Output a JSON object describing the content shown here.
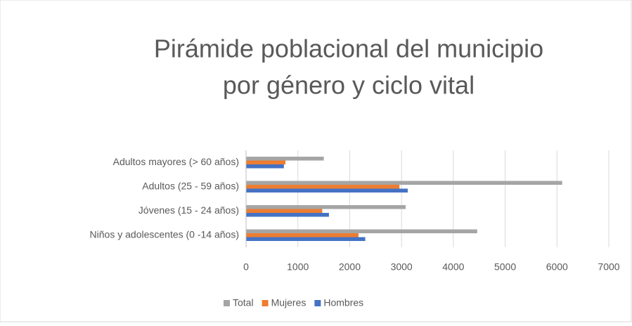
{
  "chart_data": {
    "type": "barh",
    "title": [
      "Pirámide poblacional del municipio",
      "por género y ciclo vital"
    ],
    "categories": [
      "Adultos mayores (> 60 años)",
      "Adultos (25 - 59 años)",
      "Jóvenes (15 - 24 años)",
      "Niños y adolescentes (0 -14 años)"
    ],
    "series": [
      {
        "name": "Total",
        "color": "#a5a5a5",
        "values": [
          1500,
          6100,
          3080,
          4460
        ]
      },
      {
        "name": "Mujeres",
        "color": "#ed7d31",
        "values": [
          760,
          2960,
          1470,
          2170
        ]
      },
      {
        "name": "Hombres",
        "color": "#4472c4",
        "values": [
          730,
          3120,
          1600,
          2300
        ]
      }
    ],
    "xlim": [
      0,
      7000
    ],
    "xticks": [
      0,
      1000,
      2000,
      3000,
      4000,
      5000,
      6000,
      7000
    ],
    "grid": true,
    "legend": "bottom"
  }
}
